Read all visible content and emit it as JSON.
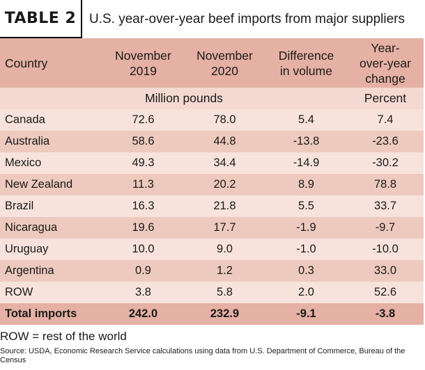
{
  "title": {
    "label": "TABLE 2",
    "text": "U.S. year-over-year beef imports from major suppliers"
  },
  "header": {
    "country": "Country",
    "nov2019": [
      "November",
      "2019"
    ],
    "nov2020": [
      "November",
      "2020"
    ],
    "diff": [
      "Difference",
      "in volume"
    ],
    "yoy": [
      "Year-",
      "over-year",
      "change"
    ]
  },
  "units": {
    "volume": "Million pounds",
    "percent": "Percent"
  },
  "rows": [
    {
      "country": "Canada",
      "nov2019": "72.6",
      "nov2020": "78.0",
      "diff": "5.4",
      "yoy": "7.4"
    },
    {
      "country": "Australia",
      "nov2019": "58.6",
      "nov2020": "44.8",
      "diff": "-13.8",
      "yoy": "-23.6"
    },
    {
      "country": "Mexico",
      "nov2019": "49.3",
      "nov2020": "34.4",
      "diff": "-14.9",
      "yoy": "-30.2"
    },
    {
      "country": "New Zealand",
      "nov2019": "11.3",
      "nov2020": "20.2",
      "diff": "8.9",
      "yoy": "78.8"
    },
    {
      "country": "Brazil",
      "nov2019": "16.3",
      "nov2020": "21.8",
      "diff": "5.5",
      "yoy": "33.7"
    },
    {
      "country": "Nicaragua",
      "nov2019": "19.6",
      "nov2020": "17.7",
      "diff": "-1.9",
      "yoy": "-9.7"
    },
    {
      "country": "Uruguay",
      "nov2019": "10.0",
      "nov2020": "9.0",
      "diff": "-1.0",
      "yoy": "-10.0"
    },
    {
      "country": "Argentina",
      "nov2019": "0.9",
      "nov2020": "1.2",
      "diff": "0.3",
      "yoy": "33.0"
    },
    {
      "country": "ROW",
      "nov2019": "3.8",
      "nov2020": "5.8",
      "diff": "2.0",
      "yoy": "52.6"
    }
  ],
  "total": {
    "country": "Total imports",
    "nov2019": "242.0",
    "nov2020": "232.9",
    "diff": "-9.1",
    "yoy": "-3.8"
  },
  "footnote": "ROW = rest of the world",
  "source": "Source: USDA, Economic Research Service calculations using data from U.S. Department of Commerce, Bureau of the Census",
  "colors": {
    "header": "#e5b1a4",
    "units": "#f3d9d1",
    "row_light": "#f7e3dc",
    "row_dark": "#edcabd"
  }
}
